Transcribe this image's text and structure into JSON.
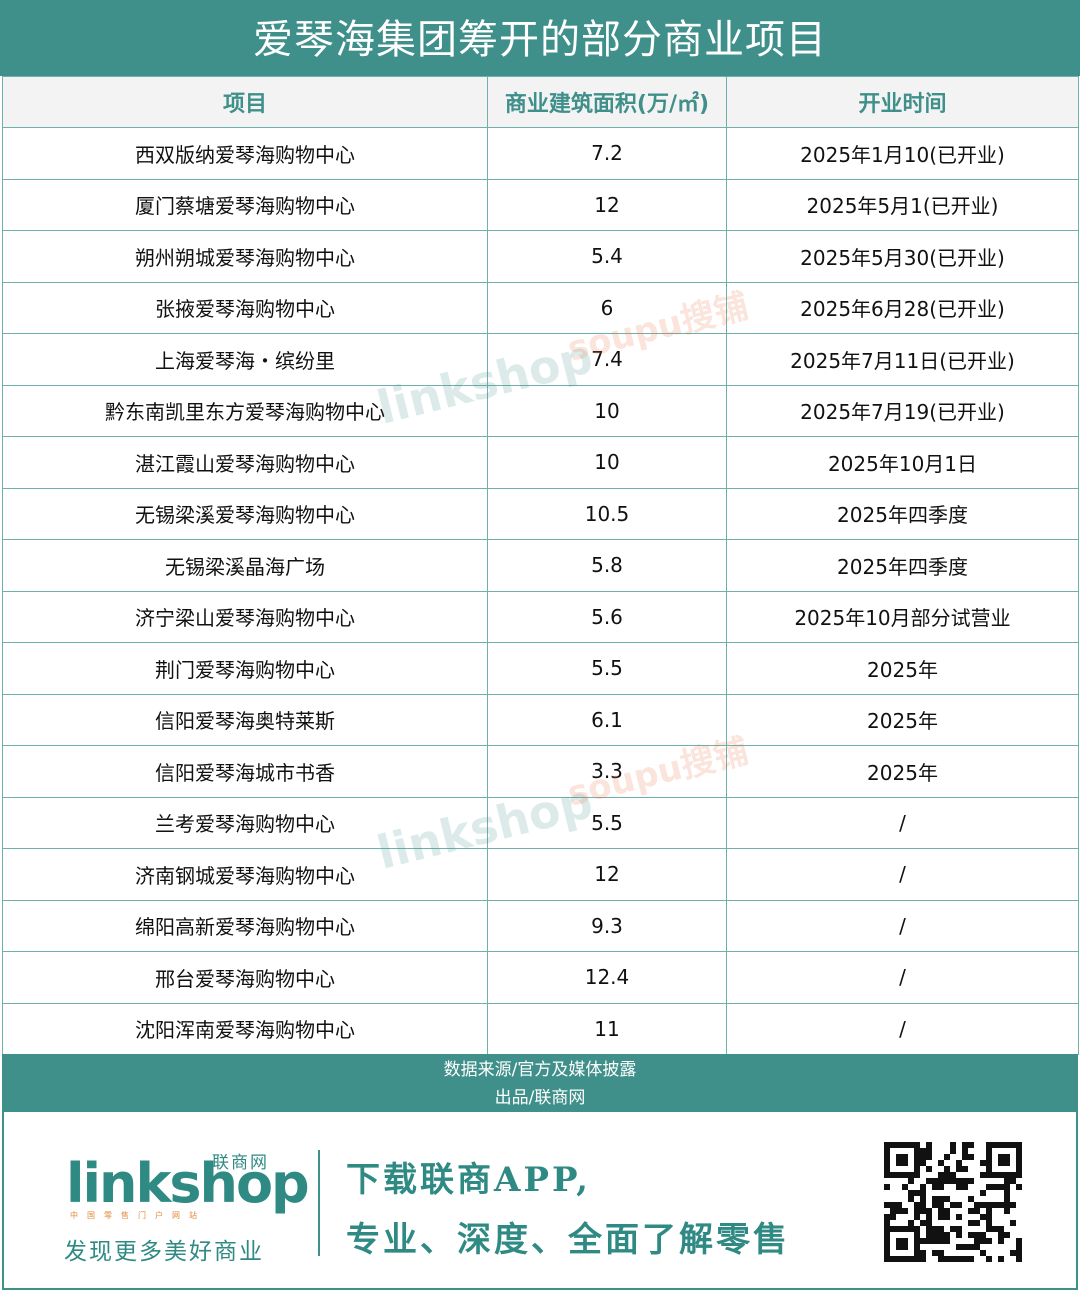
{
  "title": "爱琴海集团筹开的部分商业项目",
  "table": {
    "headers": [
      "项目",
      "商业建筑面积(万/㎡)",
      "开业时间"
    ],
    "rows": [
      [
        "西双版纳爱琴海购物中心",
        "7.2",
        "2025年1月10(已开业)"
      ],
      [
        "厦门蔡塘爱琴海购物中心",
        "12",
        "2025年5月1(已开业)"
      ],
      [
        "朔州朔城爱琴海购物中心",
        "5.4",
        "2025年5月30(已开业)"
      ],
      [
        "张掖爱琴海购物中心",
        "6",
        "2025年6月28(已开业)"
      ],
      [
        "上海爱琴海・缤纷里",
        "7.4",
        "2025年7月11日(已开业)"
      ],
      [
        "黔东南凯里东方爱琴海购物中心",
        "10",
        "2025年7月19(已开业)"
      ],
      [
        "湛江霞山爱琴海购物中心",
        "10",
        "2025年10月1日"
      ],
      [
        "无锡梁溪爱琴海购物中心",
        "10.5",
        "2025年四季度"
      ],
      [
        "无锡梁溪晶海广场",
        "5.8",
        "2025年四季度"
      ],
      [
        "济宁梁山爱琴海购物中心",
        "5.6",
        "2025年10月部分试营业"
      ],
      [
        "荆门爱琴海购物中心",
        "5.5",
        "2025年"
      ],
      [
        "信阳爱琴海奥特莱斯",
        "6.1",
        "2025年"
      ],
      [
        "信阳爱琴海城市书香",
        "3.3",
        "2025年"
      ],
      [
        "兰考爱琴海购物中心",
        "5.5",
        "/"
      ],
      [
        "济南钢城爱琴海购物中心",
        "12",
        "/"
      ],
      [
        "绵阳高新爱琴海购物中心",
        "9.3",
        "/"
      ],
      [
        "邢台爱琴海购物中心",
        "12.4",
        "/"
      ],
      [
        "沈阳浑南爱琴海购物中心",
        "11",
        "/"
      ]
    ]
  },
  "source": {
    "line1": "数据来源/官方及媒体披露",
    "line2": "出品/联商网"
  },
  "footer": {
    "logo_text": "linkshop",
    "logo_cn": "联商网",
    "logo_sub": "中国零售门户网站",
    "slogan": "发现更多美好商业",
    "promo1": "下载联商APP,",
    "promo2": "专业、深度、全面了解零售"
  },
  "watermarks": [
    "linkshop",
    "soupu搜铺"
  ],
  "colors": {
    "brand": "#3f8f8a",
    "header_bg": "#f3f3f3"
  }
}
